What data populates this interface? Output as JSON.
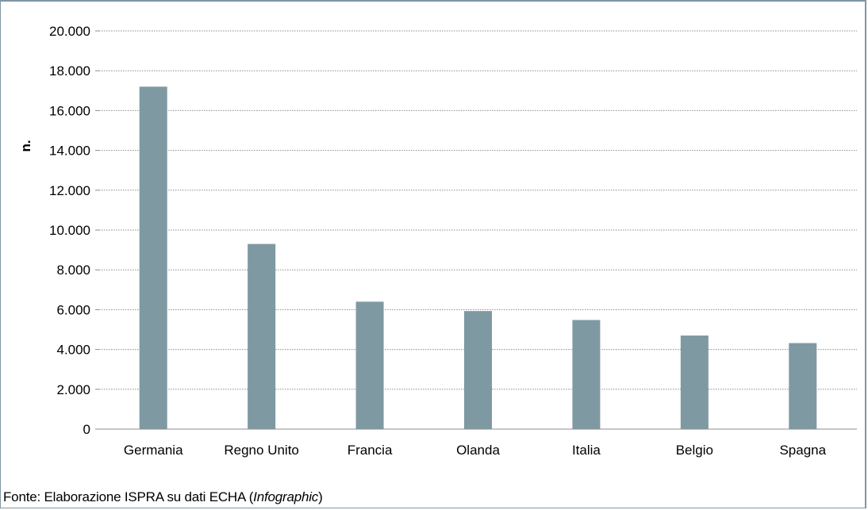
{
  "chart_data": {
    "type": "bar",
    "categories": [
      "Germania",
      "Regno Unito",
      "Francia",
      "Olanda",
      "Italia",
      "Belgio",
      "Spagna"
    ],
    "values": [
      17200,
      9300,
      6400,
      5930,
      5480,
      4700,
      4320
    ],
    "ylabel": "n.",
    "xlabel": "",
    "ylim": [
      0,
      20000
    ],
    "yticks": [
      "0",
      "2.000",
      "4.000",
      "6.000",
      "8.000",
      "10.000",
      "12.000",
      "14.000",
      "16.000",
      "18.000",
      "20.000"
    ],
    "grid": true,
    "bar_color": "#7f99a3"
  },
  "source": {
    "prefix": "Fonte: Elaborazione ISPRA su dati ECHA (",
    "italic": "Infographic",
    "suffix": ")"
  }
}
